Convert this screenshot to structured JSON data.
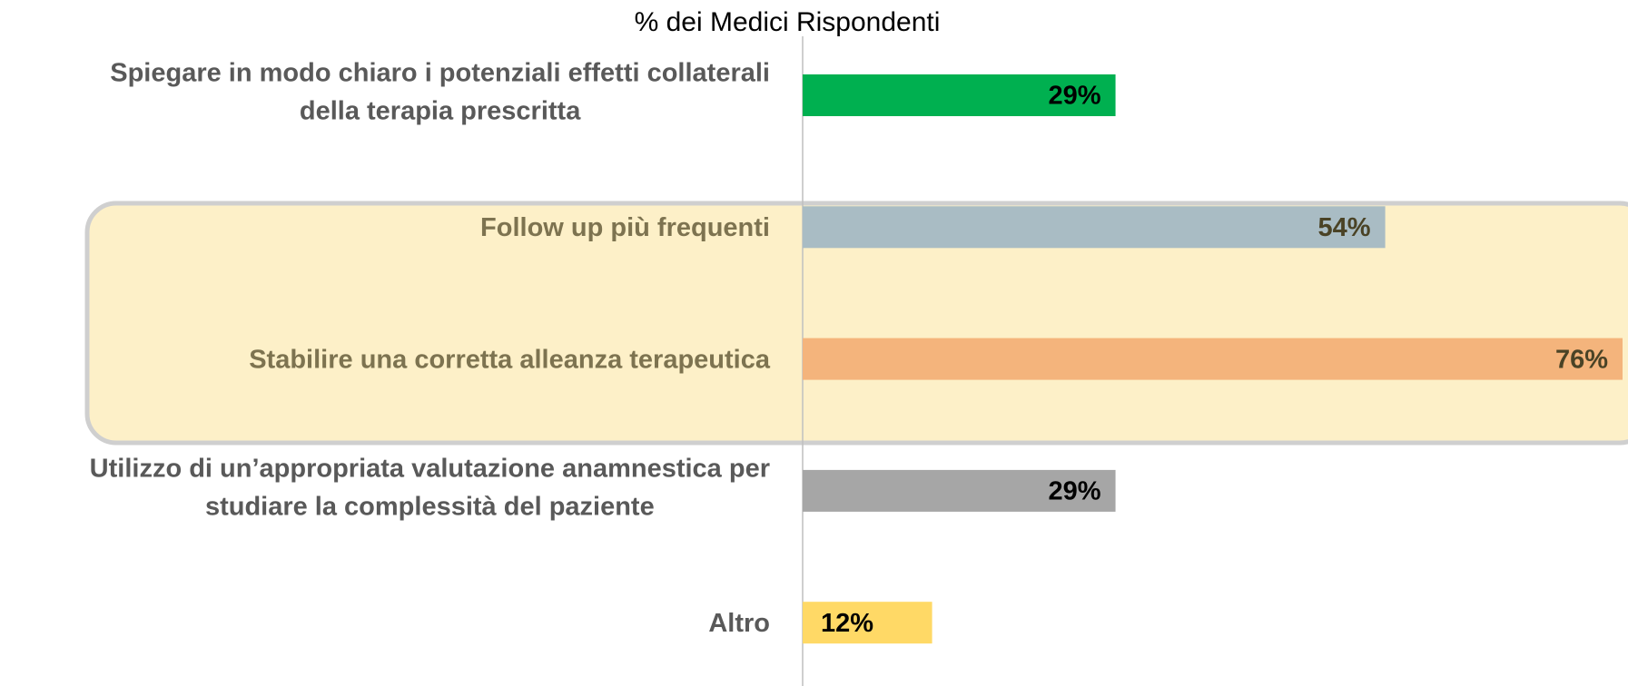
{
  "chart_data": {
    "type": "barh",
    "title": "% dei Medici Rispondenti",
    "categories": [
      [
        "Spiegare in modo chiaro i potenziali effetti collaterali",
        "della terapia prescritta"
      ],
      [
        "Follow up più frequenti"
      ],
      [
        "Stabilire una corretta alleanza terapeutica"
      ],
      [
        "Utilizzo di un’appropriata valutazione anamnestica per",
        "studiare la complessità del paziente"
      ],
      [
        "Altro"
      ]
    ],
    "values": [
      29,
      54,
      76,
      29,
      12
    ],
    "value_labels": [
      "29%",
      "54%",
      "76%",
      "29%",
      "12%"
    ],
    "colors": [
      "#00b050",
      "#a9bcc4",
      "#f4b47c",
      "#a6a6a6",
      "#ffd966"
    ]
  }
}
